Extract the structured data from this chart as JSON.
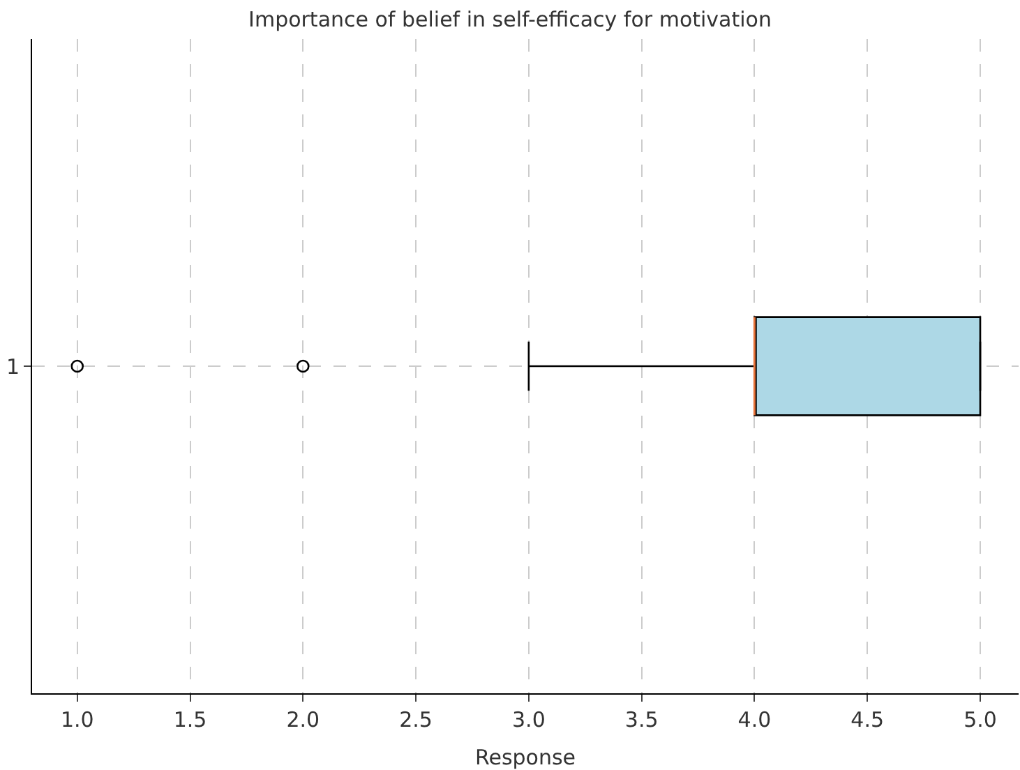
{
  "chart_data": {
    "type": "box",
    "title": "Importance of belief in self-efficacy for motivation",
    "xlabel": "Response",
    "orientation": "horizontal",
    "categories": [
      "1"
    ],
    "boxes": [
      {
        "low": 3,
        "q1": 4,
        "median": 4,
        "q3": 5,
        "high": 5,
        "outliers": [
          1,
          2
        ]
      }
    ],
    "color": "#add8e6",
    "xlim": [
      0.8,
      5.17
    ],
    "xticks": [
      {
        "value": 1,
        "label": "1.0"
      },
      {
        "value": 1.5,
        "label": "1.5"
      },
      {
        "value": 2,
        "label": "2.0"
      },
      {
        "value": 2.5,
        "label": "2.5"
      },
      {
        "value": 3,
        "label": "3.0"
      },
      {
        "value": 3.5,
        "label": "3.5"
      },
      {
        "value": 4,
        "label": "4.0"
      },
      {
        "value": 4.5,
        "label": "4.5"
      },
      {
        "value": 5,
        "label": "5.0"
      }
    ],
    "grid": true
  }
}
